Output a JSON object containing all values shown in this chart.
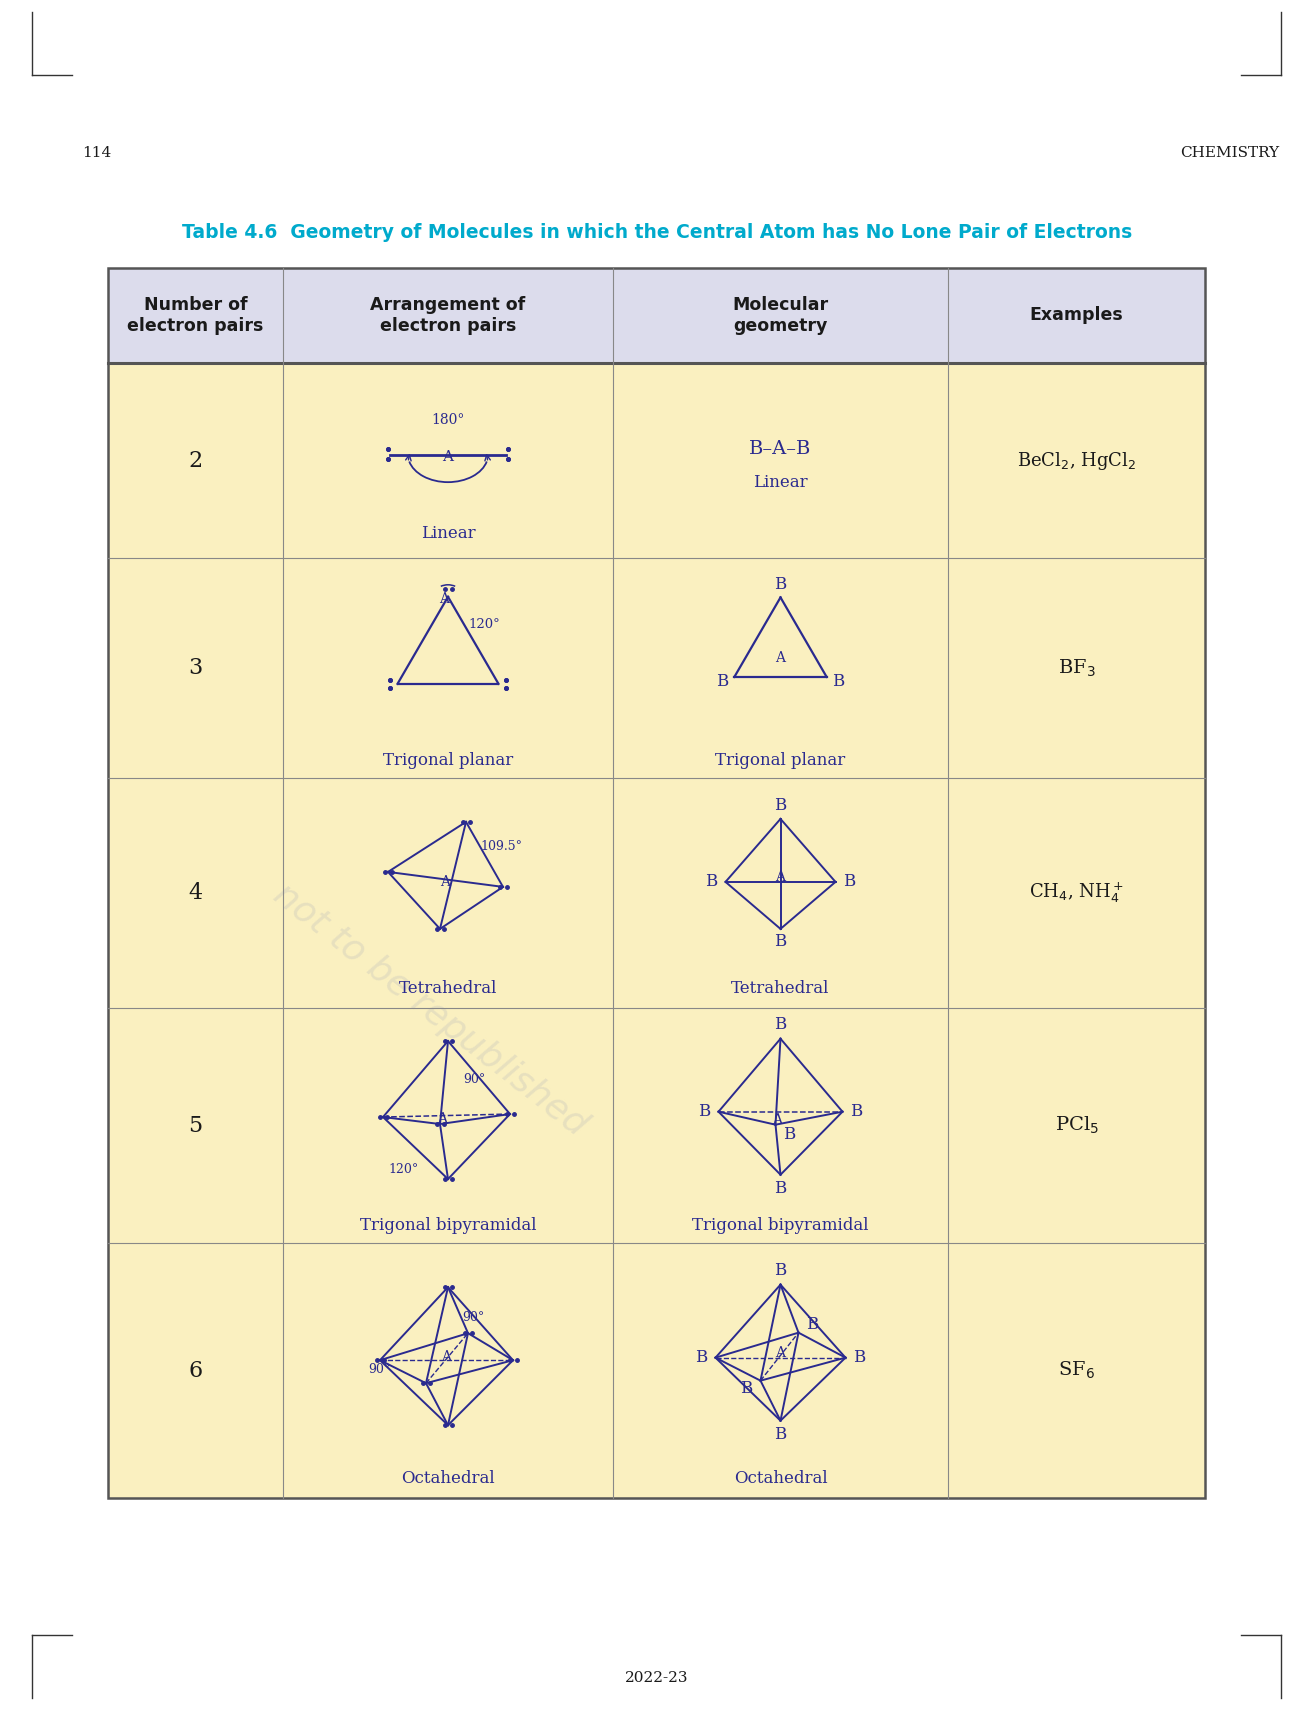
{
  "title": "Table 4.6  Geometry of Molecules in which the Central Atom has No Lone Pair of Electrons",
  "title_color": "#00AACC",
  "page_number": "114",
  "page_footer": "2022-23",
  "header_bg": "#DCDCEC",
  "body_bg": "#FAF0C0",
  "border_color": "#444444",
  "col_headers": [
    "Number of\nelectron pairs",
    "Arrangement of\nelectron pairs",
    "Molecular\ngeometry",
    "Examples"
  ],
  "draw_color": "#2A2A8F",
  "text_color": "#1A1A1A"
}
